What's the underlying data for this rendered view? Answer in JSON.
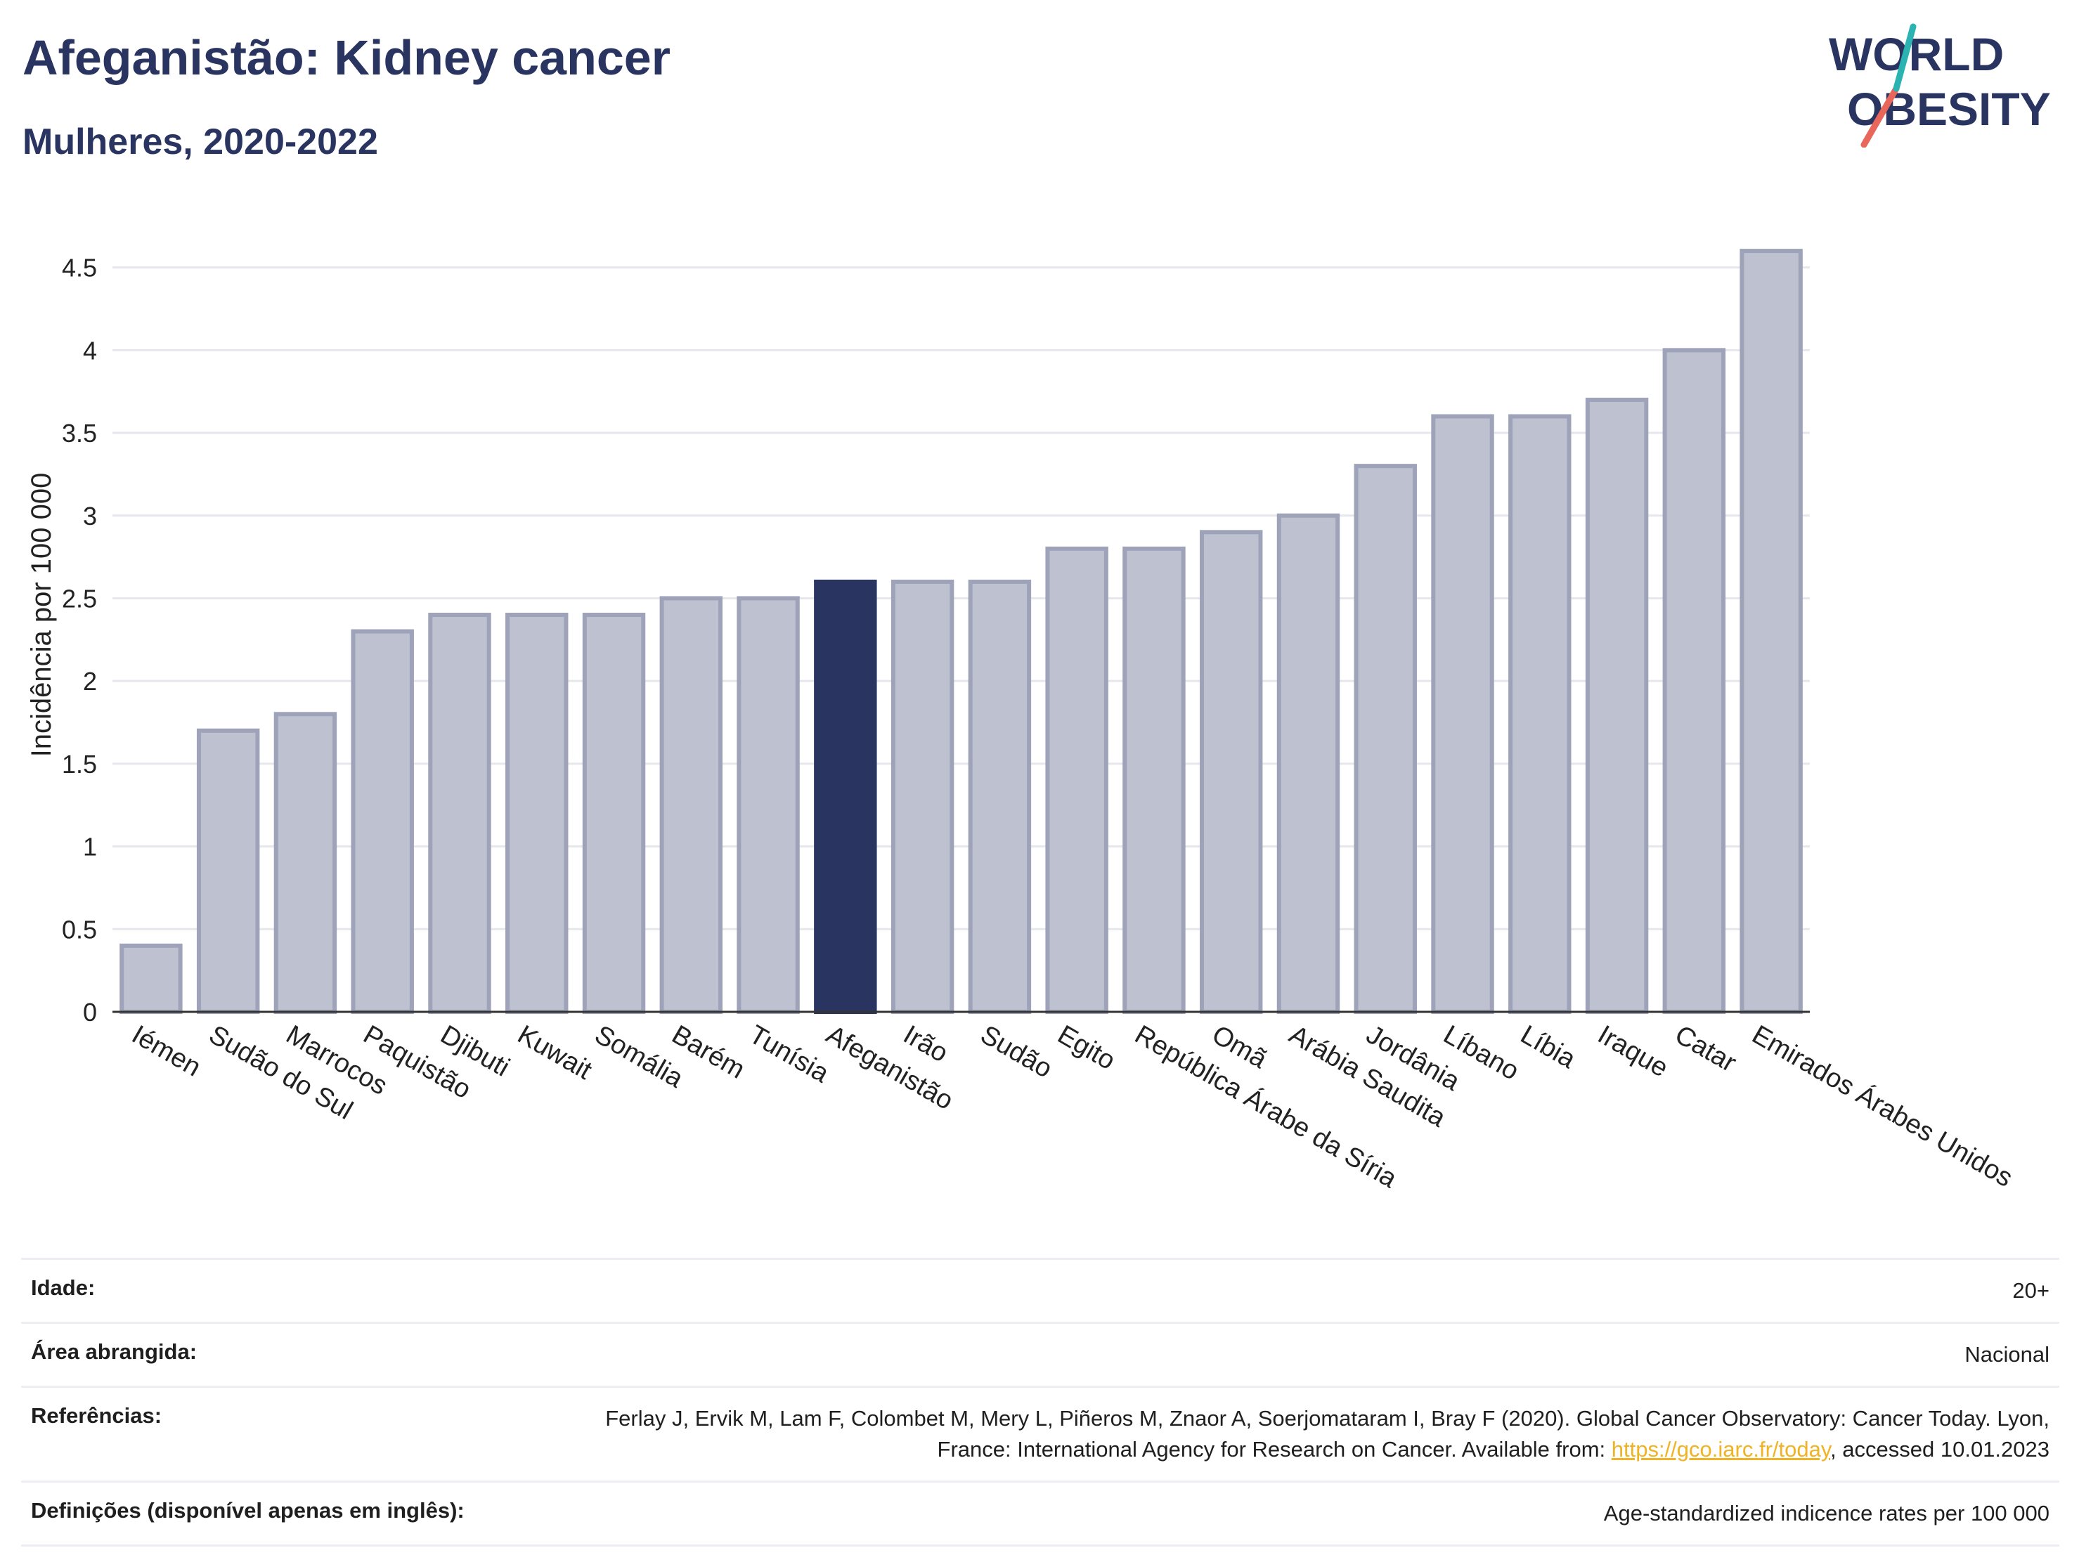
{
  "header": {
    "title": "Afeganistão: Kidney cancer",
    "subtitle": "Mulheres, 2020-2022"
  },
  "logo": {
    "line1": "WORLD",
    "line2": "OBESITY",
    "accent_colors": [
      "#e8675a",
      "#2bb3b1"
    ],
    "text_color": "#2a3461"
  },
  "colors": {
    "bar": "#bec1cf",
    "bar_stroke": "#9ea3b9",
    "highlight": "#2a3461",
    "grid": "#e6e7ec",
    "axis": "#333333"
  },
  "chart_data": {
    "type": "bar",
    "title": "",
    "xlabel": "",
    "ylabel": "Incidência por 100 000",
    "ylim": [
      0,
      4.8
    ],
    "yticks": [
      0,
      0.5,
      1,
      1.5,
      2,
      2.5,
      3,
      3.5,
      4,
      4.5
    ],
    "ytick_labels": [
      "0",
      "0.5",
      "1",
      "1.5",
      "2",
      "2.5",
      "3",
      "3.5",
      "4",
      "4.5"
    ],
    "grid": true,
    "highlight": "Afeganistão",
    "categories": [
      "Iémen",
      "Sudão do Sul",
      "Marrocos",
      "Paquistão",
      "Djibuti",
      "Kuwait",
      "Somália",
      "Barém",
      "Tunísia",
      "Afeganistão",
      "Irão",
      "Sudão",
      "Egito",
      "República Árabe da Síria",
      "Omã",
      "Arábia Saudita",
      "Jordânia",
      "Líbano",
      "Líbia",
      "Iraque",
      "Catar",
      "Emirados Árabes Unidos"
    ],
    "values": [
      0.4,
      1.7,
      1.8,
      2.3,
      2.4,
      2.4,
      2.4,
      2.5,
      2.5,
      2.6,
      2.6,
      2.6,
      2.8,
      2.8,
      2.9,
      3.0,
      3.3,
      3.6,
      3.6,
      3.7,
      4.0,
      4.6
    ]
  },
  "meta": {
    "age_label": "Idade:",
    "age_value": "20+",
    "area_label": "Área abrangida:",
    "area_value": "Nacional",
    "refs_label": "Referências:",
    "refs_text": "Ferlay J, Ervik M, Lam F, Colombet M, Mery L, Piñeros M, Znaor A, Soerjomataram I, Bray F (2020). Global Cancer Observatory: Cancer Today. Lyon, France: International Agency for Research on Cancer. Available from: ",
    "refs_link": "https://gco.iarc.fr/today",
    "refs_suffix": ", accessed 10.01.2023",
    "defs_label": "Definições (disponível apenas em inglês):",
    "defs_value": "Age-standardized indicence rates per 100 000"
  }
}
